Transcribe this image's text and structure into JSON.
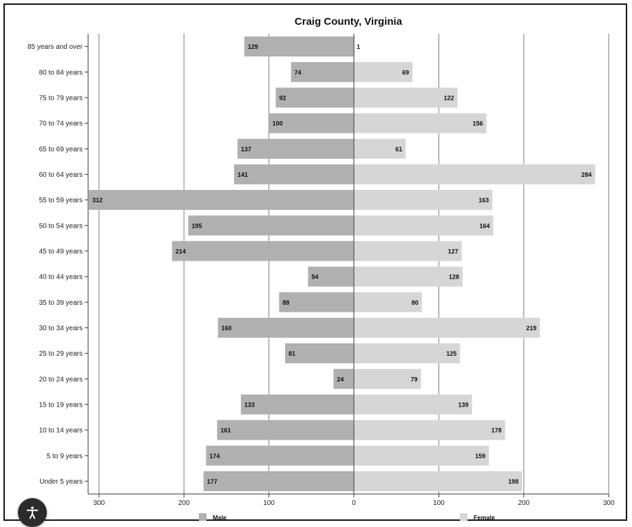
{
  "chart_data": {
    "type": "bar",
    "orientation": "horizontal-butterfly",
    "title": "Craig County, Virginia",
    "categories": [
      "85 years and over",
      "80 to 84 years",
      "75 to 79 years",
      "70 to 74 years",
      "65 to 69 years",
      "60 to 64 years",
      "55 to 59 years",
      "50 to 54 years",
      "45 to 49 years",
      "40 to 44 years",
      "35 to 39 years",
      "30 to 34 years",
      "25 to 29 years",
      "20 to 24 years",
      "15 to 19 years",
      "10 to 14 years",
      "5 to 9 years",
      "Under 5 years"
    ],
    "series": [
      {
        "name": "Male",
        "color": "#b0b0b0",
        "values": [
          129,
          74,
          92,
          100,
          137,
          141,
          312,
          195,
          214,
          54,
          88,
          160,
          81,
          24,
          133,
          161,
          174,
          177
        ]
      },
      {
        "name": "Female",
        "color": "#d6d6d6",
        "values": [
          1,
          69,
          122,
          156,
          61,
          284,
          163,
          164,
          127,
          128,
          80,
          219,
          125,
          79,
          139,
          178,
          159,
          198
        ]
      }
    ],
    "xlim": [
      -300,
      300
    ],
    "x_ticks": [
      {
        "value": -300,
        "label": "300"
      },
      {
        "value": -200,
        "label": "200"
      },
      {
        "value": -100,
        "label": "100"
      },
      {
        "value": 0,
        "label": "0"
      },
      {
        "value": 100,
        "label": "100"
      },
      {
        "value": 200,
        "label": "200"
      },
      {
        "value": 300,
        "label": "300"
      }
    ],
    "grid": true,
    "legend": "bottom"
  },
  "accessibility_button": {
    "icon": "accessibility-icon"
  }
}
